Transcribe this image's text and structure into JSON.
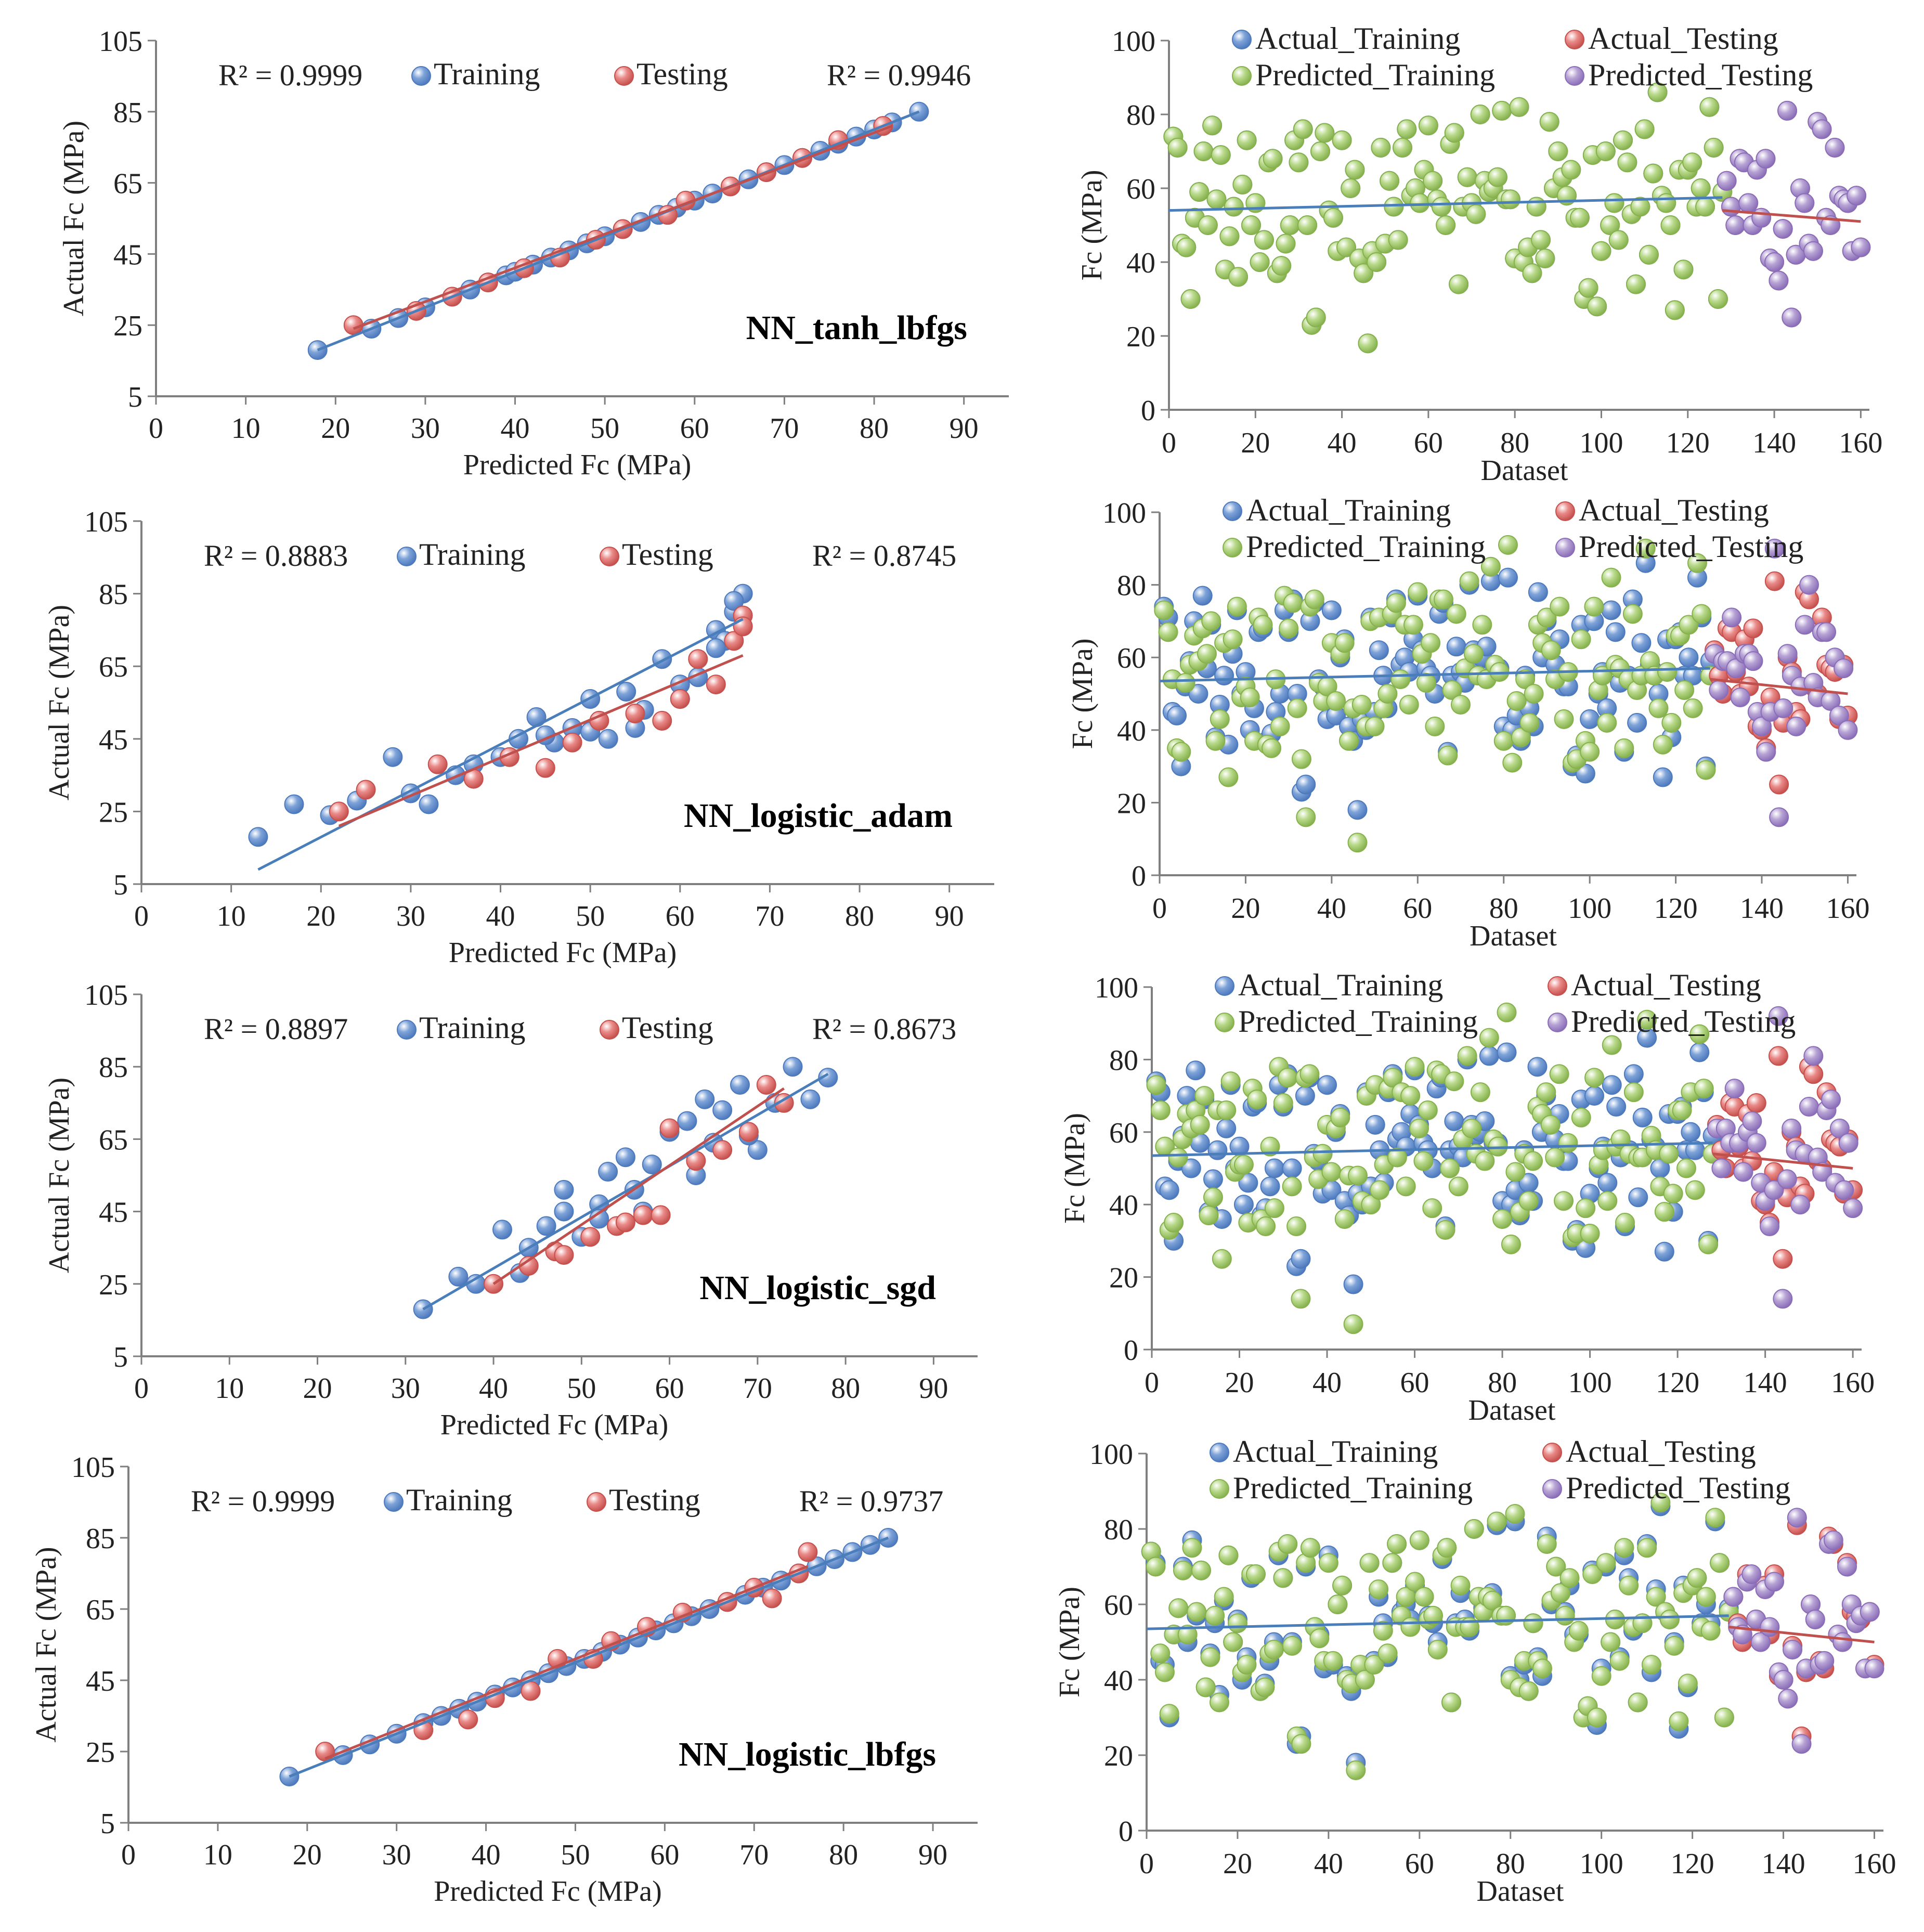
{
  "colors": {
    "training": "#7ea3d8",
    "training_stroke": "#4d79bd",
    "testing": "#e98a88",
    "testing_stroke": "#c5504d",
    "pred_training": "#b8d98a",
    "pred_training_stroke": "#86b14d",
    "pred_testing": "#b7a3d4",
    "pred_testing_stroke": "#8a6db8",
    "trend_blue": "#4a7ebb",
    "trend_red": "#c0504d",
    "axis": "#7f7f7f"
  },
  "chart_data": [
    {
      "type": "scatter",
      "model": "NN_tanh_lbfgs",
      "xlabel": "Predicted Fc (MPa)",
      "ylabel": "Actual Fc (MPa)",
      "xlim": [
        0,
        95
      ],
      "ylim": [
        5,
        105
      ],
      "xticks": [
        "0",
        "10",
        "20",
        "30",
        "40",
        "50",
        "60",
        "70",
        "80",
        "90"
      ],
      "yticks": [
        "5",
        "25",
        "45",
        "65",
        "85",
        "105"
      ],
      "legend": [
        "Training",
        "Testing"
      ],
      "r2_training": "R² = 0.9999",
      "r2_testing": "R² = 0.9946",
      "series": [
        {
          "name": "Training",
          "x": [
            18,
            24,
            27,
            30,
            33,
            35,
            37,
            39,
            40,
            42,
            44,
            46,
            48,
            50,
            52,
            54,
            56,
            58,
            60,
            62,
            64,
            66,
            68,
            70,
            72,
            74,
            76,
            78,
            80,
            82,
            85
          ],
          "y": [
            18,
            24,
            27,
            30,
            33,
            35,
            37,
            39,
            40,
            42,
            44,
            46,
            48,
            50,
            52,
            54,
            56,
            58,
            60,
            62,
            64,
            66,
            68,
            70,
            72,
            74,
            76,
            78,
            80,
            82,
            85
          ]
        },
        {
          "name": "Testing",
          "x": [
            22,
            29,
            33,
            37,
            41,
            45,
            49,
            52,
            57,
            59,
            64,
            68,
            72,
            76,
            81
          ],
          "y": [
            25,
            29,
            33,
            37,
            41,
            44,
            49,
            52,
            56,
            60,
            64,
            68,
            72,
            77,
            81
          ]
        }
      ],
      "trend": {
        "training": [
          [
            18,
            18
          ],
          [
            85,
            85
          ]
        ],
        "testing": [
          [
            22,
            24
          ],
          [
            82,
            81
          ]
        ]
      }
    },
    {
      "type": "scatter",
      "model": "NN_logistic_adam",
      "xlabel": "Predicted Fc (MPa)",
      "ylabel": "Actual Fc (MPa)",
      "xlim": [
        0,
        95
      ],
      "ylim": [
        5,
        105
      ],
      "xticks": [
        "0",
        "10",
        "20",
        "30",
        "40",
        "50",
        "60",
        "70",
        "80",
        "90"
      ],
      "yticks": [
        "5",
        "25",
        "45",
        "65",
        "85",
        "105"
      ],
      "legend": [
        "Training",
        "Testing"
      ],
      "r2_training": "R² = 0.8883",
      "r2_testing": "R² = 0.8745",
      "series": [
        {
          "name": "Training",
          "x": [
            13,
            17,
            21,
            24,
            28,
            30,
            32,
            35,
            37,
            40,
            42,
            44,
            46,
            48,
            50,
            52,
            54,
            56,
            58,
            60,
            62,
            64,
            65,
            66,
            67,
            67,
            66,
            64,
            60,
            55,
            50,
            45
          ],
          "y": [
            18,
            27,
            24,
            28,
            40,
            30,
            27,
            35,
            38,
            40,
            45,
            51,
            44,
            48,
            56,
            45,
            58,
            53,
            67,
            60,
            62,
            75,
            72,
            80,
            85,
            76,
            83,
            70,
            56,
            48,
            47,
            46
          ]
        },
        {
          "name": "Testing",
          "x": [
            22,
            25,
            33,
            37,
            41,
            45,
            48,
            51,
            55,
            58,
            60,
            62,
            64,
            66,
            67,
            67
          ],
          "y": [
            25,
            31,
            38,
            34,
            40,
            37,
            44,
            50,
            52,
            50,
            56,
            67,
            60,
            72,
            79,
            76
          ]
        }
      ],
      "trend": {
        "training": [
          [
            13,
            9
          ],
          [
            67,
            78
          ]
        ],
        "testing": [
          [
            22,
            21
          ],
          [
            67,
            68
          ]
        ]
      }
    },
    {
      "type": "scatter",
      "model": "NN_logistic_sgd",
      "xlabel": "Predicted Fc (MPa)",
      "ylabel": "Actual Fc (MPa)",
      "xlim": [
        0,
        95
      ],
      "ylim": [
        5,
        105
      ],
      "xticks": [
        "0",
        "10",
        "20",
        "30",
        "40",
        "50",
        "60",
        "70",
        "80",
        "90"
      ],
      "yticks": [
        "5",
        "25",
        "45",
        "65",
        "85",
        "105"
      ],
      "legend": [
        "Training",
        "Testing"
      ],
      "r2_training": "R² = 0.8897",
      "r2_testing": "R² = 0.8673",
      "series": [
        {
          "name": "Training",
          "x": [
            32,
            36,
            38,
            41,
            43,
            44,
            46,
            48,
            50,
            52,
            53,
            55,
            57,
            58,
            60,
            62,
            64,
            65,
            66,
            68,
            70,
            72,
            74,
            76,
            78,
            48,
            52,
            56,
            63,
            69
          ],
          "y": [
            18,
            27,
            25,
            40,
            28,
            35,
            41,
            51,
            38,
            47,
            56,
            60,
            45,
            58,
            67,
            70,
            76,
            64,
            73,
            80,
            62,
            75,
            85,
            76,
            82,
            45,
            43,
            51,
            55,
            66
          ]
        },
        {
          "name": "Testing",
          "x": [
            40,
            44,
            47,
            51,
            54,
            57,
            60,
            63,
            66,
            69,
            71,
            73,
            59,
            55,
            48
          ],
          "y": [
            25,
            30,
            34,
            38,
            41,
            44,
            68,
            59,
            62,
            67,
            80,
            75,
            44,
            42,
            33
          ]
        }
      ],
      "trend": {
        "training": [
          [
            32,
            18
          ],
          [
            78,
            83
          ]
        ],
        "testing": [
          [
            40,
            25
          ],
          [
            73,
            79
          ]
        ]
      }
    },
    {
      "type": "scatter",
      "model": "NN_logistic_lbfgs",
      "xlabel": "Predicted Fc (MPa)",
      "ylabel": "Actual Fc (MPa)",
      "xlim": [
        0,
        95
      ],
      "ylim": [
        5,
        105
      ],
      "xticks": [
        "0",
        "10",
        "20",
        "30",
        "40",
        "50",
        "60",
        "70",
        "80",
        "90"
      ],
      "yticks": [
        "5",
        "25",
        "45",
        "65",
        "85",
        "105"
      ],
      "legend": [
        "Training",
        "Testing"
      ],
      "r2_training": "R² = 0.9999",
      "r2_testing": "R² = 0.9737",
      "series": [
        {
          "name": "Training",
          "x": [
            18,
            24,
            27,
            30,
            33,
            35,
            37,
            39,
            41,
            43,
            45,
            47,
            49,
            51,
            53,
            55,
            57,
            59,
            61,
            63,
            65,
            67,
            69,
            71,
            73,
            75,
            77,
            79,
            81,
            83,
            85
          ],
          "y": [
            18,
            24,
            27,
            30,
            33,
            35,
            37,
            39,
            41,
            43,
            45,
            47,
            49,
            51,
            53,
            55,
            57,
            59,
            61,
            63,
            65,
            67,
            69,
            71,
            73,
            75,
            77,
            79,
            81,
            83,
            85
          ]
        },
        {
          "name": "Testing",
          "x": [
            22,
            33,
            38,
            41,
            45,
            48,
            52,
            54,
            58,
            62,
            67,
            70,
            72,
            75,
            76
          ],
          "y": [
            25,
            31,
            34,
            40,
            42,
            51,
            51,
            56,
            60,
            64,
            67,
            71,
            68,
            75,
            81
          ]
        }
      ],
      "trend": {
        "training": [
          [
            18,
            18
          ],
          [
            85,
            85
          ]
        ],
        "testing": [
          [
            22,
            23
          ],
          [
            76,
            77
          ]
        ]
      }
    },
    {
      "type": "scatter",
      "model": "NN_tanh_lbfgs",
      "xlabel": "Dataset",
      "ylabel": "Fc (MPa)",
      "xlim": [
        0,
        162
      ],
      "ylim": [
        0,
        100
      ],
      "xticks": [
        "0",
        "20",
        "40",
        "60",
        "80",
        "100",
        "120",
        "140",
        "160"
      ],
      "yticks": [
        "0",
        "20",
        "40",
        "60",
        "80",
        "100"
      ],
      "legend": [
        "Actual_Training",
        "Actual_Testing",
        "Predicted_Training",
        "Predicted_Testing"
      ],
      "predicted_offset": [
        0,
        0
      ],
      "trend": {
        "training": [
          [
            0,
            54
          ],
          [
            128,
            57.5
          ]
        ],
        "testing": [
          [
            128,
            54
          ],
          [
            160,
            51
          ]
        ]
      }
    },
    {
      "type": "scatter",
      "model": "NN_logistic_adam",
      "xlabel": "Dataset",
      "ylabel": "Fc (MPa)",
      "xlim": [
        0,
        162
      ],
      "ylim": [
        0,
        100
      ],
      "xticks": [
        "0",
        "20",
        "40",
        "60",
        "80",
        "100",
        "120",
        "140",
        "160"
      ],
      "yticks": [
        "0",
        "20",
        "40",
        "60",
        "80",
        "100"
      ],
      "legend": [
        "Actual_Training",
        "Actual_Testing",
        "Predicted_Training",
        "Predicted_Testing"
      ],
      "predicted_offset": [
        5,
        8
      ],
      "trend": {
        "training": [
          [
            0,
            53.5
          ],
          [
            128,
            57
          ]
        ],
        "testing": [
          [
            128,
            54
          ],
          [
            160,
            50
          ]
        ]
      }
    },
    {
      "type": "scatter",
      "model": "NN_logistic_sgd",
      "xlabel": "Dataset",
      "ylabel": "Fc (MPa)",
      "xlim": [
        0,
        162
      ],
      "ylim": [
        0,
        100
      ],
      "xticks": [
        "0",
        "20",
        "40",
        "60",
        "80",
        "100",
        "120",
        "140",
        "160"
      ],
      "yticks": [
        "0",
        "20",
        "40",
        "60",
        "80",
        "100"
      ],
      "legend": [
        "Actual_Training",
        "Actual_Testing",
        "Predicted_Training",
        "Predicted_Testing"
      ],
      "predicted_offset": [
        6,
        10
      ],
      "trend": {
        "training": [
          [
            0,
            53.5
          ],
          [
            128,
            57
          ]
        ],
        "testing": [
          [
            128,
            54
          ],
          [
            160,
            50
          ]
        ]
      }
    },
    {
      "type": "scatter",
      "model": "NN_logistic_lbfgs",
      "xlabel": "Dataset",
      "ylabel": "Fc (MPa)",
      "xlim": [
        0,
        162
      ],
      "ylim": [
        0,
        100
      ],
      "xticks": [
        "0",
        "20",
        "40",
        "60",
        "80",
        "100",
        "120",
        "140",
        "160"
      ],
      "yticks": [
        "0",
        "20",
        "40",
        "60",
        "80",
        "100"
      ],
      "legend": [
        "Actual_Training",
        "Actual_Testing",
        "Predicted_Training",
        "Predicted_Testing"
      ],
      "predicted_offset": [
        1,
        2
      ],
      "trend": {
        "training": [
          [
            0,
            53.5
          ],
          [
            128,
            57
          ]
        ],
        "testing": [
          [
            128,
            54
          ],
          [
            160,
            50
          ]
        ]
      }
    }
  ],
  "dataset_series": {
    "actual_training": [
      74,
      71,
      45,
      44,
      30,
      52,
      59,
      70,
      50,
      77,
      57,
      69,
      38,
      47,
      55,
      36,
      61,
      73,
      50,
      56,
      40,
      46,
      67,
      68,
      37,
      39,
      45,
      50,
      73,
      67,
      76,
      50,
      23,
      25,
      70,
      75,
      54,
      52,
      43,
      73,
      44,
      60,
      65,
      41,
      37,
      18,
      43,
      40,
      71,
      45,
      62,
      55,
      46,
      71,
      76,
      58,
      60,
      56,
      65,
      77,
      62,
      57,
      55,
      50,
      72,
      75,
      34,
      55,
      63,
      56,
      53,
      80,
      62,
      59,
      60,
      63,
      81,
      57,
      57,
      41,
      82,
      40,
      44,
      37,
      55,
      46,
      41,
      78,
      60,
      70,
      63,
      58,
      65,
      52,
      52,
      30,
      33,
      69,
      28,
      43,
      70,
      50,
      56,
      46,
      73,
      67,
      53,
      34,
      55,
      76,
      42,
      64,
      86,
      58,
      56,
      50,
      27,
      65,
      38,
      65,
      67,
      55,
      60,
      55,
      82,
      71,
      30,
      59
    ],
    "actual_testing": [
      62,
      55,
      50,
      68,
      67,
      56,
      50,
      65,
      52,
      68,
      41,
      40,
      35,
      49,
      81,
      25,
      42,
      60,
      56,
      45,
      43,
      78,
      76,
      52,
      50,
      71,
      58,
      57,
      56,
      43,
      58,
      44
    ]
  }
}
